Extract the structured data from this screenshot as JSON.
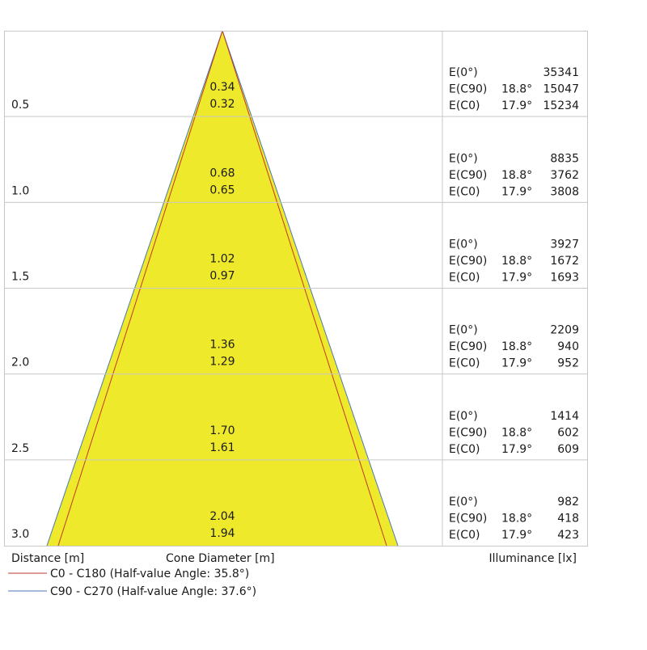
{
  "rows": [
    {
      "distance": "0.5",
      "diameter_c90": "0.34",
      "diameter_c0": "0.32",
      "illuminance": [
        {
          "label": "E(0°)",
          "value": "35341"
        },
        {
          "label": "E(C90)",
          "angle": "18.8°",
          "value": "15047"
        },
        {
          "label": "E(C0)",
          "angle": "17.9°",
          "value": "15234"
        }
      ]
    },
    {
      "distance": "1.0",
      "diameter_c90": "0.68",
      "diameter_c0": "0.65",
      "illuminance": [
        {
          "label": "E(0°)",
          "value": "8835"
        },
        {
          "label": "E(C90)",
          "angle": "18.8°",
          "value": "3762"
        },
        {
          "label": "E(C0)",
          "angle": "17.9°",
          "value": "3808"
        }
      ]
    },
    {
      "distance": "1.5",
      "diameter_c90": "1.02",
      "diameter_c0": "0.97",
      "illuminance": [
        {
          "label": "E(0°)",
          "value": "3927"
        },
        {
          "label": "E(C90)",
          "angle": "18.8°",
          "value": "1672"
        },
        {
          "label": "E(C0)",
          "angle": "17.9°",
          "value": "1693"
        }
      ]
    },
    {
      "distance": "2.0",
      "diameter_c90": "1.36",
      "diameter_c0": "1.29",
      "illuminance": [
        {
          "label": "E(0°)",
          "value": "2209"
        },
        {
          "label": "E(C90)",
          "angle": "18.8°",
          "value": "940"
        },
        {
          "label": "E(C0)",
          "angle": "17.9°",
          "value": "952"
        }
      ]
    },
    {
      "distance": "2.5",
      "diameter_c90": "1.70",
      "diameter_c0": "1.61",
      "illuminance": [
        {
          "label": "E(0°)",
          "value": "1414"
        },
        {
          "label": "E(C90)",
          "angle": "18.8°",
          "value": "602"
        },
        {
          "label": "E(C0)",
          "angle": "17.9°",
          "value": "609"
        }
      ]
    },
    {
      "distance": "3.0",
      "diameter_c90": "2.04",
      "diameter_c0": "1.94",
      "illuminance": [
        {
          "label": "E(0°)",
          "value": "982"
        },
        {
          "label": "E(C90)",
          "angle": "18.8°",
          "value": "418"
        },
        {
          "label": "E(C0)",
          "angle": "17.9°",
          "value": "423"
        }
      ]
    }
  ],
  "labels": {
    "distance": "Distance [m]",
    "diameter": "Cone Diameter [m]",
    "illuminance": "Illuminance [lx]"
  },
  "legend": [
    {
      "text": "C0 - C180 (Half-value Angle: 35.8°)",
      "color": "#c0392b"
    },
    {
      "text": "C90 - C270 (Half-value Angle: 37.6°)",
      "color": "#4a78b5"
    }
  ]
}
